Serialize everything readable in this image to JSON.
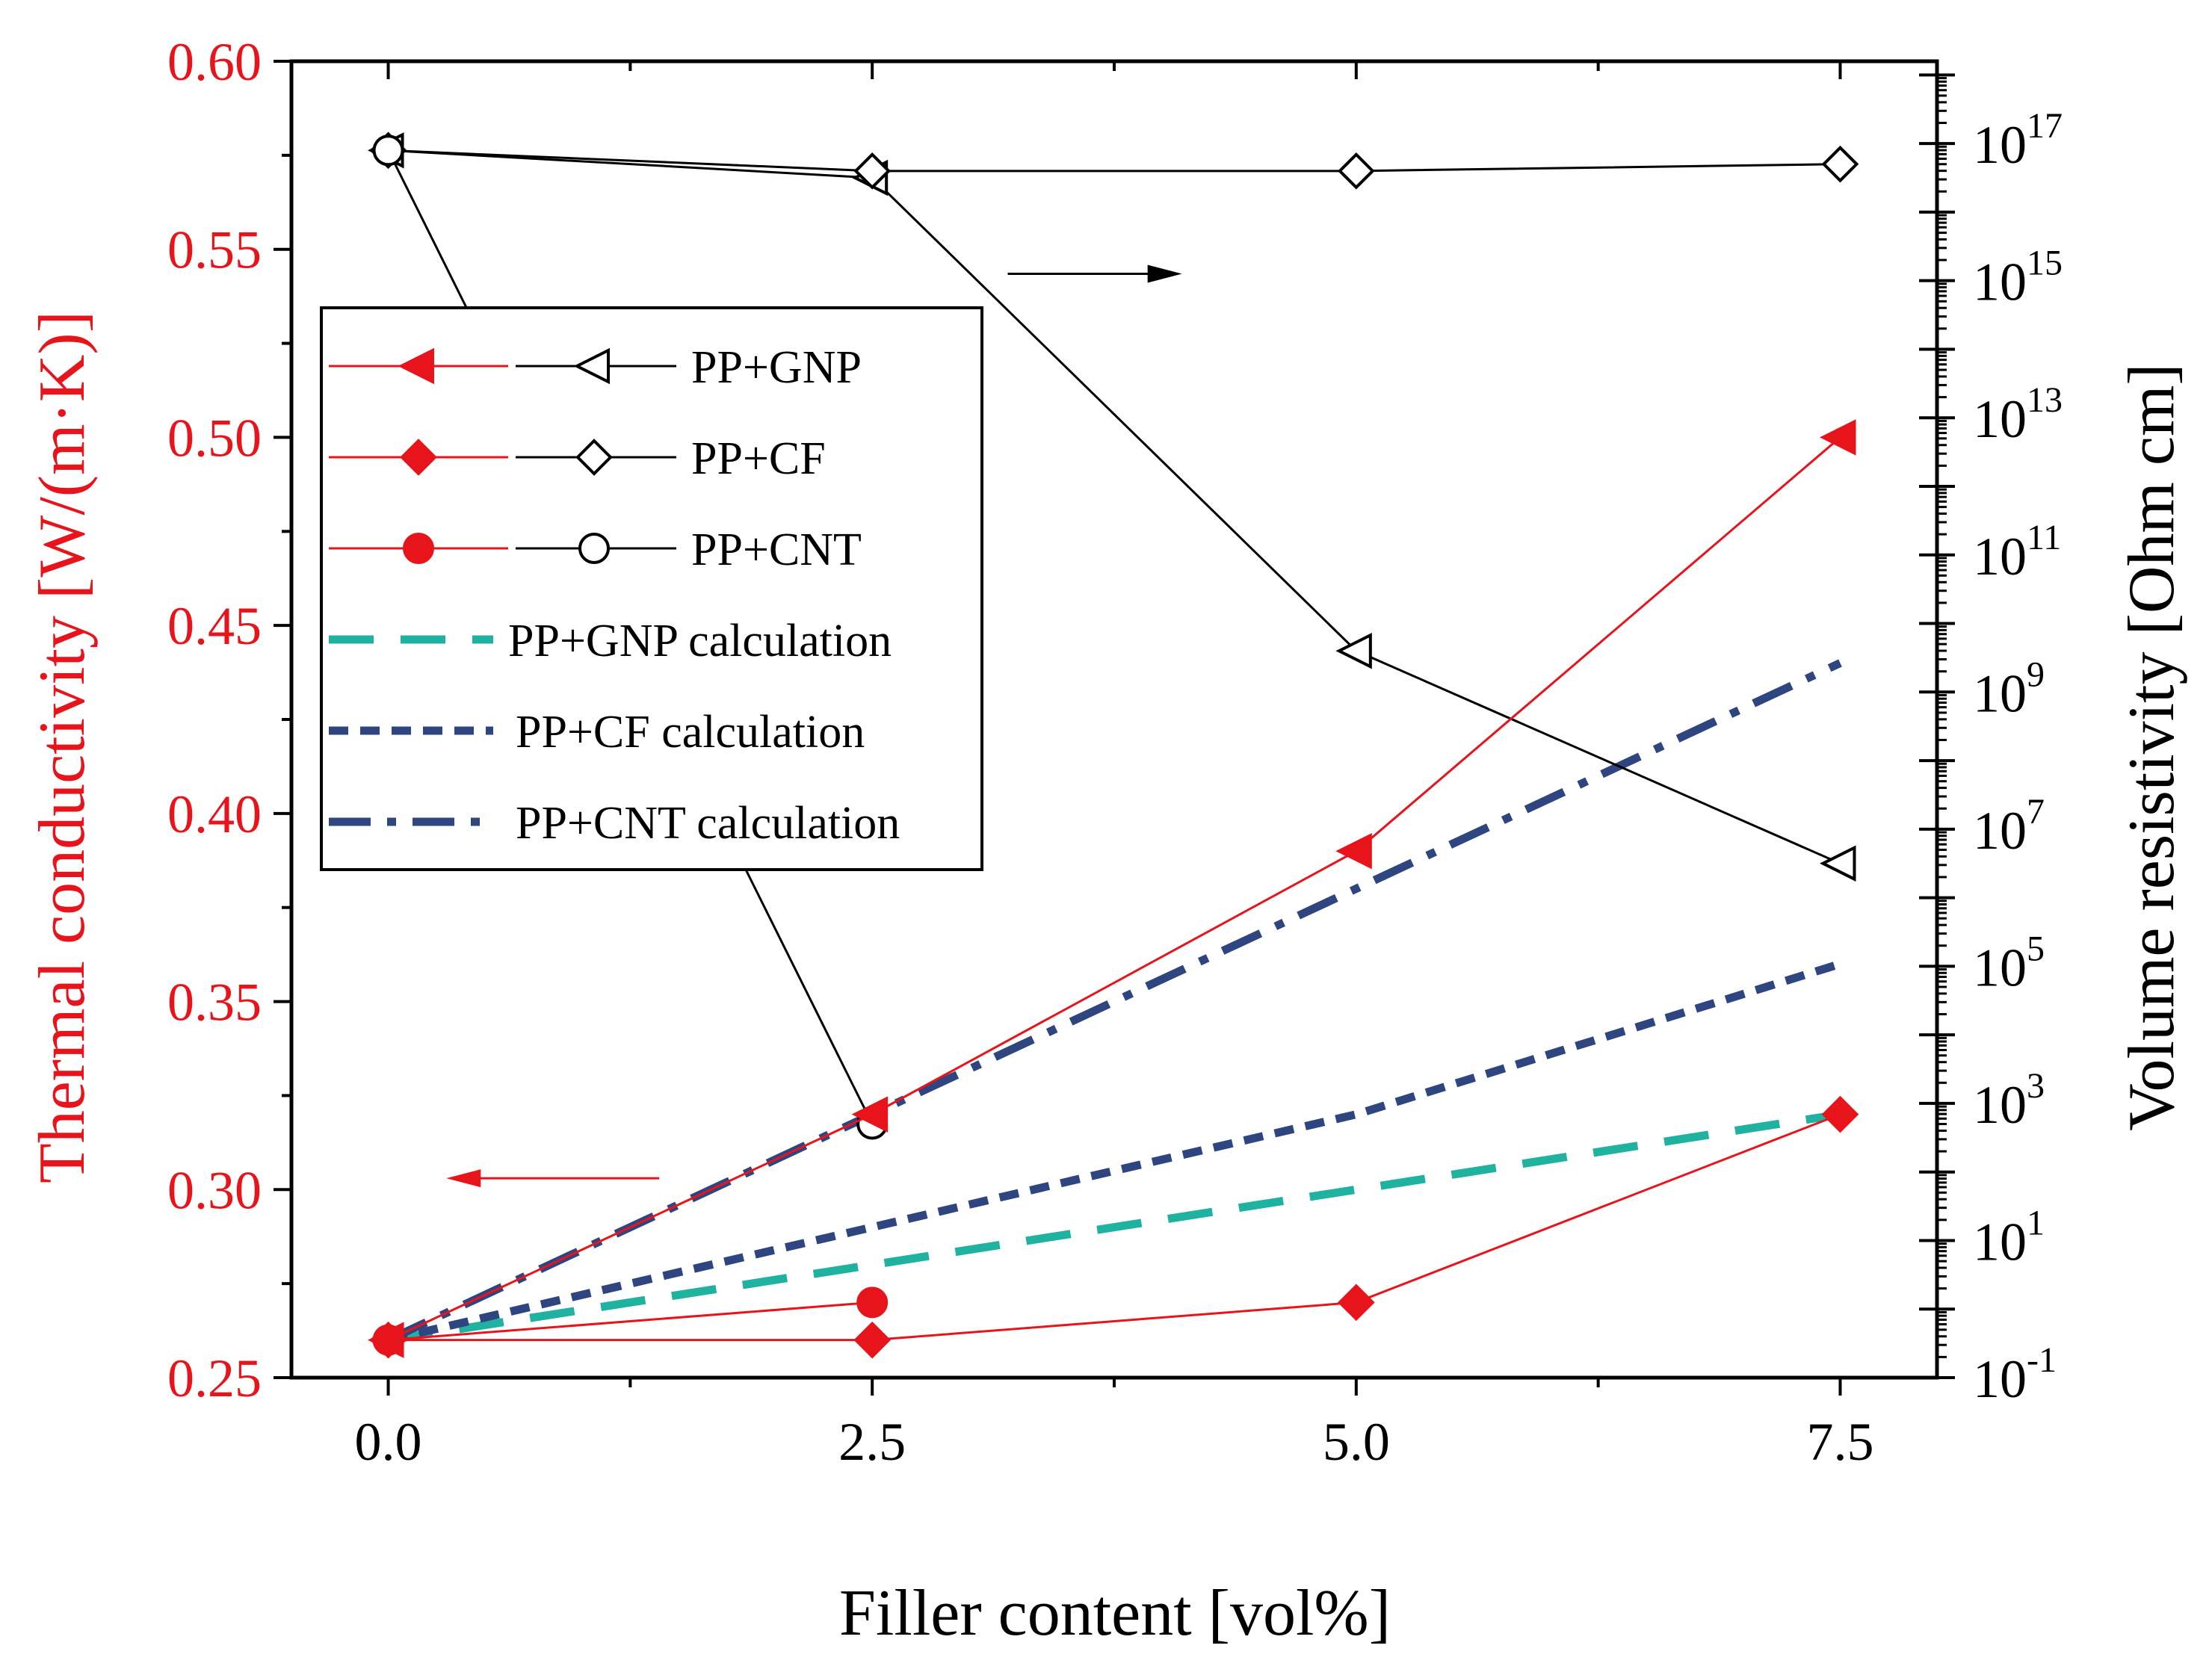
{
  "chart_data": {
    "type": "line",
    "xlabel": "Filler content [vol%]",
    "ylabel_left": "Thermal conductivity [W/(m·K)]",
    "ylabel_right": "Volume resistivity [Ohm cm]",
    "x_ticks": [
      "0.0",
      "2.5",
      "5.0",
      "7.5"
    ],
    "y_left_ticks": [
      "0.25",
      "0.30",
      "0.35",
      "0.40",
      "0.45",
      "0.50",
      "0.55",
      "0.60"
    ],
    "y_right_ticks": [
      {
        "base": "10",
        "exp": "-1"
      },
      {
        "base": "10",
        "exp": "1"
      },
      {
        "base": "10",
        "exp": "3"
      },
      {
        "base": "10",
        "exp": "5"
      },
      {
        "base": "10",
        "exp": "7"
      },
      {
        "base": "10",
        "exp": "9"
      },
      {
        "base": "10",
        "exp": "11"
      },
      {
        "base": "10",
        "exp": "13"
      },
      {
        "base": "10",
        "exp": "15"
      },
      {
        "base": "10",
        "exp": "17"
      }
    ],
    "xlim": [
      -0.5,
      8.0
    ],
    "ylim_left": [
      0.25,
      0.6
    ],
    "ylim_right_log10": [
      -1,
      18.2
    ],
    "thermal_series": [
      {
        "name": "PP+GNP",
        "marker": "triangle-left",
        "color": "#e8141c",
        "x": [
          0,
          2.5,
          5.0,
          7.5
        ],
        "y": [
          0.26,
          0.32,
          0.39,
          0.5
        ]
      },
      {
        "name": "PP+CF",
        "marker": "diamond",
        "color": "#e8141c",
        "x": [
          0,
          2.5,
          5.0,
          7.5
        ],
        "y": [
          0.26,
          0.26,
          0.27,
          0.32
        ]
      },
      {
        "name": "PP+CNT",
        "marker": "circle",
        "color": "#e8141c",
        "x": [
          0,
          2.5
        ],
        "y": [
          0.26,
          0.27
        ]
      }
    ],
    "calc_series": [
      {
        "name": "PP+GNP calculation",
        "style": "dash",
        "color": "#20b2a0",
        "x": [
          0,
          2.5,
          5.0,
          7.5
        ],
        "y": [
          0.26,
          0.28,
          0.3,
          0.32
        ]
      },
      {
        "name": "PP+CF calculation",
        "style": "short-dash",
        "color": "#2e4580",
        "x": [
          0,
          2.5,
          5.0,
          7.5
        ],
        "y": [
          0.26,
          0.29,
          0.32,
          0.36
        ]
      },
      {
        "name": "PP+CNT calculation",
        "style": "dash-dot",
        "color": "#2e4580",
        "x": [
          0,
          2.5,
          5.0,
          7.5
        ],
        "y": [
          0.26,
          0.32,
          0.38,
          0.44
        ]
      }
    ],
    "resistivity_series": [
      {
        "name": "PP+GNP",
        "marker": "triangle-left-open",
        "x": [
          0,
          2.5,
          5.0,
          7.5
        ],
        "log10_y": [
          16.9,
          16.5,
          9.6,
          6.5
        ]
      },
      {
        "name": "PP+CF",
        "marker": "diamond-open",
        "x": [
          0,
          2.5,
          5.0,
          7.5
        ],
        "log10_y": [
          16.9,
          16.6,
          16.6,
          16.7
        ]
      },
      {
        "name": "PP+CNT",
        "marker": "circle-open",
        "x": [
          0,
          2.5
        ],
        "log10_y": [
          16.9,
          2.7
        ]
      }
    ],
    "annotations": [
      {
        "text": "",
        "direction": "right",
        "color": "#000000",
        "refers_to": "right-axis",
        "x": [
          3.2,
          4.1
        ],
        "log10_y": [
          15.1,
          15.1
        ]
      },
      {
        "text": "",
        "direction": "left",
        "color": "#e8141c",
        "refers_to": "left-axis",
        "x": [
          0.3,
          1.4
        ],
        "y": [
          0.303,
          0.303
        ]
      }
    ]
  }
}
